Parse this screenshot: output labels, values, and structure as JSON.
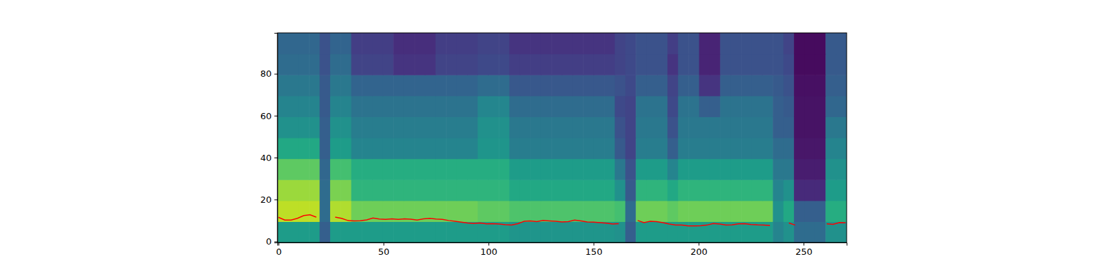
{
  "chart_data": {
    "type": "heatmap",
    "xlim": [
      -0.5,
      270.5
    ],
    "ylim": [
      -0.5,
      99.5
    ],
    "xticks": [
      0,
      50,
      100,
      150,
      200,
      250
    ],
    "yticks": [
      0,
      20,
      40,
      60,
      80
    ],
    "zlim": [
      0,
      1
    ],
    "cells": [
      [
        0.55,
        0.55,
        0.55,
        0.55,
        0.3,
        0.55,
        0.55,
        0.55,
        0.55,
        0.55,
        0.55,
        0.55,
        0.55,
        0.55,
        0.55,
        0.55,
        0.55,
        0.55,
        0.55,
        0.55,
        0.55,
        0.55,
        0.52,
        0.52,
        0.52,
        0.52,
        0.52,
        0.52,
        0.52,
        0.52,
        0.52,
        0.52,
        0.5,
        0.3,
        0.55,
        0.55,
        0.55,
        0.55,
        0.55,
        0.55,
        0.55,
        0.55,
        0.55,
        0.55,
        0.55,
        0.55,
        0.55,
        0.45,
        0.5,
        0.35,
        0.35,
        0.35,
        0.5,
        0.5
      ],
      [
        0.9,
        0.9,
        0.9,
        0.9,
        0.35,
        0.88,
        0.88,
        0.78,
        0.78,
        0.78,
        0.78,
        0.78,
        0.78,
        0.78,
        0.78,
        0.78,
        0.78,
        0.78,
        0.78,
        0.75,
        0.75,
        0.75,
        0.72,
        0.72,
        0.72,
        0.72,
        0.72,
        0.72,
        0.72,
        0.72,
        0.72,
        0.72,
        0.7,
        0.35,
        0.78,
        0.78,
        0.78,
        0.75,
        0.78,
        0.78,
        0.78,
        0.78,
        0.78,
        0.78,
        0.78,
        0.78,
        0.78,
        0.5,
        0.6,
        0.3,
        0.3,
        0.3,
        0.62,
        0.62
      ],
      [
        0.85,
        0.85,
        0.85,
        0.85,
        0.35,
        0.8,
        0.8,
        0.65,
        0.65,
        0.65,
        0.65,
        0.65,
        0.65,
        0.65,
        0.65,
        0.65,
        0.65,
        0.65,
        0.65,
        0.65,
        0.65,
        0.65,
        0.6,
        0.6,
        0.6,
        0.6,
        0.6,
        0.6,
        0.6,
        0.6,
        0.6,
        0.6,
        0.5,
        0.28,
        0.65,
        0.65,
        0.65,
        0.6,
        0.65,
        0.65,
        0.65,
        0.65,
        0.65,
        0.65,
        0.65,
        0.65,
        0.65,
        0.45,
        0.5,
        0.12,
        0.12,
        0.12,
        0.55,
        0.55
      ],
      [
        0.75,
        0.75,
        0.75,
        0.75,
        0.33,
        0.7,
        0.7,
        0.62,
        0.62,
        0.62,
        0.62,
        0.62,
        0.62,
        0.62,
        0.62,
        0.62,
        0.62,
        0.62,
        0.62,
        0.62,
        0.62,
        0.62,
        0.55,
        0.55,
        0.55,
        0.55,
        0.55,
        0.55,
        0.55,
        0.55,
        0.55,
        0.55,
        0.4,
        0.25,
        0.55,
        0.55,
        0.55,
        0.45,
        0.55,
        0.55,
        0.55,
        0.55,
        0.55,
        0.55,
        0.55,
        0.55,
        0.55,
        0.4,
        0.4,
        0.08,
        0.08,
        0.08,
        0.5,
        0.5
      ],
      [
        0.6,
        0.6,
        0.6,
        0.6,
        0.3,
        0.55,
        0.55,
        0.45,
        0.45,
        0.45,
        0.45,
        0.45,
        0.45,
        0.45,
        0.45,
        0.45,
        0.45,
        0.45,
        0.45,
        0.52,
        0.52,
        0.52,
        0.42,
        0.42,
        0.42,
        0.42,
        0.42,
        0.42,
        0.42,
        0.42,
        0.42,
        0.42,
        0.28,
        0.2,
        0.42,
        0.42,
        0.42,
        0.3,
        0.42,
        0.42,
        0.42,
        0.42,
        0.42,
        0.42,
        0.42,
        0.42,
        0.42,
        0.35,
        0.35,
        0.06,
        0.06,
        0.06,
        0.45,
        0.45
      ],
      [
        0.5,
        0.5,
        0.5,
        0.5,
        0.3,
        0.5,
        0.5,
        0.42,
        0.42,
        0.42,
        0.42,
        0.42,
        0.42,
        0.42,
        0.42,
        0.42,
        0.42,
        0.42,
        0.42,
        0.5,
        0.5,
        0.5,
        0.4,
        0.4,
        0.4,
        0.4,
        0.4,
        0.4,
        0.4,
        0.4,
        0.4,
        0.4,
        0.25,
        0.2,
        0.4,
        0.4,
        0.4,
        0.25,
        0.4,
        0.4,
        0.4,
        0.4,
        0.4,
        0.4,
        0.4,
        0.4,
        0.4,
        0.3,
        0.3,
        0.05,
        0.05,
        0.05,
        0.4,
        0.4
      ],
      [
        0.45,
        0.45,
        0.45,
        0.45,
        0.28,
        0.45,
        0.45,
        0.38,
        0.38,
        0.38,
        0.38,
        0.38,
        0.38,
        0.38,
        0.38,
        0.38,
        0.38,
        0.38,
        0.38,
        0.46,
        0.46,
        0.46,
        0.35,
        0.35,
        0.35,
        0.35,
        0.35,
        0.35,
        0.35,
        0.35,
        0.35,
        0.35,
        0.22,
        0.2,
        0.38,
        0.38,
        0.38,
        0.22,
        0.38,
        0.38,
        0.3,
        0.3,
        0.38,
        0.38,
        0.38,
        0.38,
        0.38,
        0.3,
        0.28,
        0.05,
        0.05,
        0.05,
        0.33,
        0.33
      ],
      [
        0.4,
        0.4,
        0.4,
        0.4,
        0.28,
        0.4,
        0.4,
        0.32,
        0.32,
        0.32,
        0.32,
        0.32,
        0.32,
        0.32,
        0.32,
        0.32,
        0.32,
        0.32,
        0.32,
        0.35,
        0.35,
        0.35,
        0.27,
        0.27,
        0.27,
        0.27,
        0.27,
        0.27,
        0.27,
        0.27,
        0.27,
        0.27,
        0.25,
        0.22,
        0.3,
        0.3,
        0.3,
        0.2,
        0.3,
        0.3,
        0.15,
        0.15,
        0.3,
        0.3,
        0.3,
        0.3,
        0.3,
        0.28,
        0.25,
        0.04,
        0.04,
        0.04,
        0.3,
        0.3
      ],
      [
        0.35,
        0.35,
        0.35,
        0.35,
        0.25,
        0.35,
        0.35,
        0.2,
        0.2,
        0.2,
        0.2,
        0.15,
        0.15,
        0.15,
        0.15,
        0.2,
        0.2,
        0.2,
        0.2,
        0.22,
        0.22,
        0.22,
        0.18,
        0.18,
        0.18,
        0.18,
        0.18,
        0.18,
        0.18,
        0.18,
        0.18,
        0.18,
        0.2,
        0.22,
        0.25,
        0.25,
        0.25,
        0.15,
        0.25,
        0.25,
        0.1,
        0.1,
        0.25,
        0.25,
        0.25,
        0.25,
        0.25,
        0.25,
        0.22,
        0.03,
        0.03,
        0.03,
        0.28,
        0.28
      ],
      [
        0.33,
        0.33,
        0.33,
        0.33,
        0.25,
        0.32,
        0.32,
        0.18,
        0.18,
        0.18,
        0.18,
        0.13,
        0.13,
        0.13,
        0.13,
        0.18,
        0.18,
        0.18,
        0.18,
        0.2,
        0.2,
        0.2,
        0.15,
        0.15,
        0.15,
        0.15,
        0.15,
        0.15,
        0.15,
        0.15,
        0.15,
        0.15,
        0.2,
        0.22,
        0.25,
        0.25,
        0.25,
        0.18,
        0.25,
        0.25,
        0.1,
        0.1,
        0.25,
        0.25,
        0.25,
        0.25,
        0.25,
        0.25,
        0.2,
        0.03,
        0.03,
        0.03,
        0.28,
        0.28
      ]
    ],
    "x": [
      0,
      3,
      6,
      9,
      12,
      15,
      18,
      21,
      24,
      27,
      30,
      33,
      36,
      39,
      42,
      45,
      48,
      51,
      54,
      57,
      60,
      63,
      66,
      69,
      72,
      75,
      78,
      81,
      84,
      87,
      90,
      93,
      96,
      99,
      102,
      105,
      108,
      111,
      114,
      117,
      120,
      123,
      126,
      129,
      132,
      135,
      138,
      141,
      144,
      147,
      150,
      153,
      156,
      159,
      162,
      165,
      168,
      171,
      174,
      177,
      180,
      183,
      186,
      189,
      192,
      195,
      198,
      201,
      204,
      207,
      210,
      213,
      216,
      219,
      222,
      225,
      228,
      231,
      234,
      237,
      240,
      243,
      246,
      249,
      252,
      255,
      258,
      261,
      264,
      267,
      270
    ],
    "series": [
      {
        "type": "line",
        "color": "#ff0000",
        "values": [
          11.5,
          10.2,
          10.2,
          11,
          12.3,
          12.7,
          11.6,
          null,
          null,
          11.6,
          11,
          10,
          9.8,
          9.9,
          10.3,
          11.2,
          10.7,
          10.5,
          10.8,
          10.5,
          10.8,
          10.6,
          10.2,
          10.8,
          11,
          10.7,
          10.5,
          10,
          9.6,
          9.2,
          8.8,
          8.6,
          8.8,
          8.4,
          8.5,
          8.3,
          8,
          7.8,
          8.5,
          9.6,
          9.8,
          9.5,
          10,
          9.8,
          9.6,
          9.3,
          9.5,
          10.2,
          9.8,
          9.3,
          9.2,
          9,
          8.7,
          8.3,
          8.5,
          null,
          null,
          10,
          9,
          9.6,
          9.5,
          9,
          8.3,
          7.8,
          7.8,
          7.4,
          7.4,
          7.5,
          7.8,
          8.6,
          8.3,
          7.8,
          7.9,
          8.4,
          8.5,
          8.1,
          7.9,
          7.8,
          7.6,
          null,
          null,
          8.8,
          7.8,
          null,
          null,
          null,
          null,
          8.4,
          8.2,
          9,
          8.9
        ]
      }
    ]
  }
}
